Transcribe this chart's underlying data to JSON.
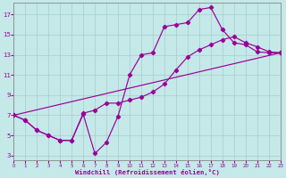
{
  "xlabel": "Windchill (Refroidissement éolien,°C)",
  "bg_color": "#c5e8e8",
  "line_color": "#990099",
  "grid_color": "#a8cccc",
  "xlim": [
    0,
    23
  ],
  "ylim": [
    2.5,
    18.2
  ],
  "yticks": [
    3,
    5,
    7,
    9,
    11,
    13,
    15,
    17
  ],
  "xticks": [
    0,
    1,
    2,
    3,
    4,
    5,
    6,
    7,
    8,
    9,
    10,
    11,
    12,
    13,
    14,
    15,
    16,
    17,
    18,
    19,
    20,
    21,
    22,
    23
  ],
  "curve1_x": [
    0,
    1,
    2,
    3,
    4,
    5,
    6,
    7,
    8,
    9,
    10,
    11,
    12,
    13,
    14,
    15,
    16,
    17,
    18,
    19,
    20,
    21,
    22,
    23
  ],
  "curve1_y": [
    7.0,
    6.5,
    5.5,
    5.0,
    4.5,
    4.5,
    7.1,
    3.2,
    4.3,
    6.9,
    11.0,
    13.0,
    13.2,
    15.8,
    16.0,
    16.2,
    17.5,
    17.7,
    15.5,
    14.2,
    14.0,
    13.3,
    13.2,
    13.2
  ],
  "curve2_x": [
    0,
    1,
    2,
    3,
    4,
    5,
    6,
    7,
    8,
    9,
    10,
    11,
    12,
    13,
    14,
    15,
    16,
    17,
    18,
    19,
    20,
    21,
    22,
    23
  ],
  "curve2_y": [
    7.0,
    6.5,
    5.5,
    5.0,
    4.5,
    4.5,
    7.2,
    7.5,
    8.2,
    8.2,
    8.5,
    8.8,
    9.3,
    10.1,
    11.5,
    12.8,
    13.5,
    14.0,
    14.5,
    14.8,
    14.2,
    13.8,
    13.3,
    13.2
  ],
  "curve3_x": [
    0,
    23
  ],
  "curve3_y": [
    7.0,
    13.2
  ]
}
